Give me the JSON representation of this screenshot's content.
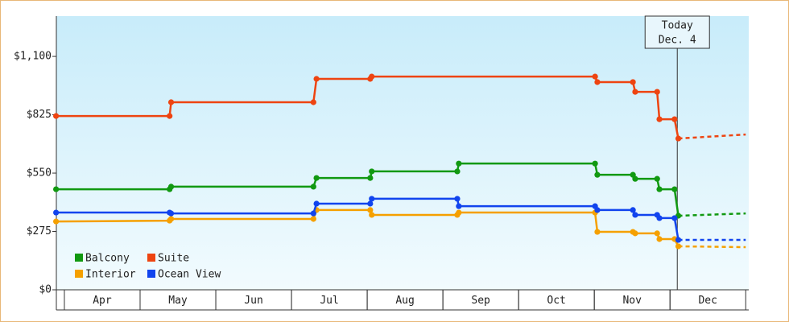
{
  "chart_data": {
    "type": "line",
    "xlim": [
      3.894,
      13.04
    ],
    "xticks": [
      {
        "value": 4.5,
        "label": "Apr"
      },
      {
        "value": 5.5,
        "label": "May"
      },
      {
        "value": 6.5,
        "label": "Jun"
      },
      {
        "value": 7.5,
        "label": "Jul"
      },
      {
        "value": 8.5,
        "label": "Aug"
      },
      {
        "value": 9.5,
        "label": "Sep"
      },
      {
        "value": 10.5,
        "label": "Oct"
      },
      {
        "value": 11.5,
        "label": "Nov"
      },
      {
        "value": 12.5,
        "label": "Dec"
      }
    ],
    "ylim": [
      0,
      1290
    ],
    "yticks": [
      {
        "value": 0,
        "label": "$0"
      },
      {
        "value": 275,
        "label": "$275"
      },
      {
        "value": 550,
        "label": "$550"
      },
      {
        "value": 825,
        "label": "$825"
      },
      {
        "value": 1100,
        "label": "$1,100"
      }
    ],
    "legend": "lower left",
    "today": {
      "x": 12.096,
      "label": [
        "Today",
        "Dec. 4"
      ]
    },
    "series": [
      {
        "name": "Balcony",
        "color": "#119911",
        "x": [
          3.89,
          5.39,
          5.41,
          7.29,
          7.33,
          8.04,
          8.06,
          9.19,
          9.21,
          11.01,
          11.04,
          11.51,
          11.54,
          11.83,
          11.86,
          12.06,
          12.11
        ],
        "values": [
          474,
          474,
          486,
          486,
          527,
          527,
          558,
          558,
          595,
          595,
          542,
          542,
          523,
          523,
          474,
          474,
          349
        ],
        "projection": {
          "x": [
            12.11,
            13.0
          ],
          "values": [
            349,
            360
          ]
        }
      },
      {
        "name": "Suite",
        "color": "#ee4411",
        "x": [
          3.89,
          5.39,
          5.41,
          7.29,
          7.33,
          8.04,
          8.06,
          11.01,
          11.04,
          11.51,
          11.54,
          11.83,
          11.86,
          12.06,
          12.11
        ],
        "values": [
          819,
          819,
          884,
          884,
          994,
          994,
          1005,
          1005,
          979,
          979,
          933,
          933,
          804,
          804,
          713
        ],
        "projection": {
          "x": [
            12.11,
            13.0
          ],
          "values": [
            713,
            732
          ]
        }
      },
      {
        "name": "Interior",
        "color": "#f5a000",
        "x": [
          3.89,
          5.39,
          5.41,
          7.29,
          7.33,
          8.04,
          8.06,
          9.19,
          9.21,
          11.01,
          11.04,
          11.51,
          11.54,
          11.83,
          11.86,
          12.06,
          12.11
        ],
        "values": [
          322,
          326,
          334,
          334,
          376,
          376,
          353,
          353,
          364,
          364,
          273,
          273,
          266,
          266,
          239,
          239,
          205
        ],
        "projection": {
          "x": [
            12.11,
            13.0
          ],
          "values": [
            205,
            201
          ]
        }
      },
      {
        "name": "Ocean View",
        "color": "#1144ee",
        "x": [
          3.89,
          5.39,
          5.41,
          7.29,
          7.33,
          8.04,
          8.06,
          9.19,
          9.21,
          11.01,
          11.04,
          11.51,
          11.54,
          11.83,
          11.86,
          12.06,
          12.11
        ],
        "values": [
          364,
          364,
          360,
          360,
          406,
          406,
          429,
          429,
          394,
          394,
          376,
          376,
          353,
          353,
          338,
          338,
          235
        ],
        "projection": {
          "x": [
            12.11,
            13.0
          ],
          "values": [
            235,
            235
          ]
        }
      }
    ]
  }
}
